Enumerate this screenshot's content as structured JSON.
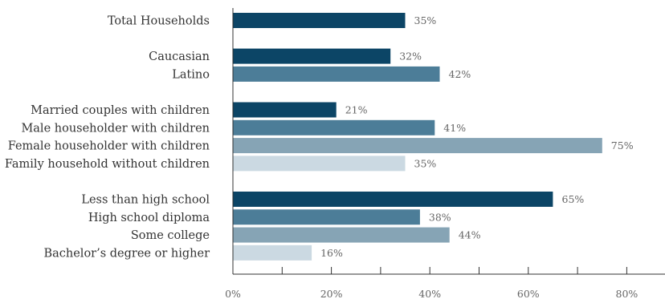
{
  "chart_data": {
    "type": "bar",
    "orientation": "horizontal",
    "title": "",
    "xlabel": "",
    "ylabel": "",
    "xlim": [
      0,
      87
    ],
    "x_ticks": [
      {
        "value": 0,
        "label": "0%"
      },
      {
        "value": 20,
        "label": "20%"
      },
      {
        "value": 40,
        "label": "40%"
      },
      {
        "value": 60,
        "label": "60%"
      },
      {
        "value": 80,
        "label": "80%"
      }
    ],
    "grid": false,
    "legend": "none",
    "groups": [
      {
        "bars": [
          {
            "category": "Total Households",
            "value": 35,
            "label": "35%",
            "color": "#0c4566"
          }
        ]
      },
      {
        "bars": [
          {
            "category": "Caucasian",
            "value": 32,
            "label": "32%",
            "color": "#0c4566"
          },
          {
            "category": "Latino",
            "value": 42,
            "label": "42%",
            "color": "#4c7d98"
          }
        ]
      },
      {
        "bars": [
          {
            "category": "Married couples with children",
            "value": 21,
            "label": "21%",
            "color": "#0c4566"
          },
          {
            "category": "Male householder with children",
            "value": 41,
            "label": "41%",
            "color": "#4c7d98"
          },
          {
            "category": "Female householder with children",
            "value": 75,
            "label": "75%",
            "color": "#86a4b5"
          },
          {
            "category": "Family household without children",
            "value": 35,
            "label": "35%",
            "color": "#cbd9e2"
          }
        ]
      },
      {
        "bars": [
          {
            "category": "Less than high school",
            "value": 65,
            "label": "65%",
            "color": "#0c4566"
          },
          {
            "category": "High school diploma",
            "value": 38,
            "label": "38%",
            "color": "#4c7d98"
          },
          {
            "category": "Some college",
            "value": 44,
            "label": "44%",
            "color": "#86a4b5"
          },
          {
            "category": "Bachelor’s degree or higher",
            "value": 16,
            "label": "16%",
            "color": "#cbd9e2"
          }
        ]
      }
    ]
  }
}
